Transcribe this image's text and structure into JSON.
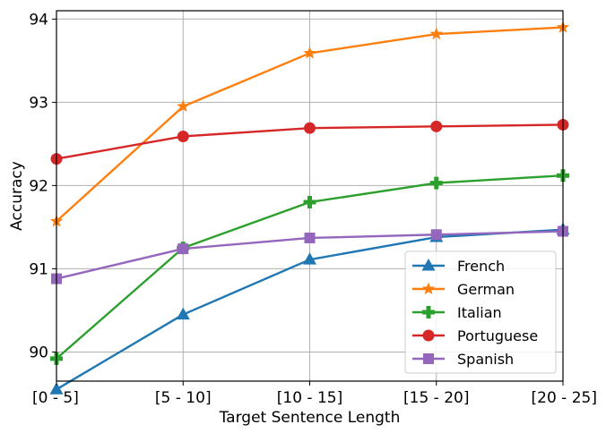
{
  "chart_data": {
    "type": "line",
    "title": "",
    "xlabel": "Target Sentence Length",
    "ylabel": "Accuracy",
    "categories": [
      "[0 - 5]",
      "[5 - 10]",
      "[10 - 15]",
      "[15 - 20]",
      "[20 - 25]"
    ],
    "ylim": [
      89.65,
      94.1
    ],
    "yticks": [
      90,
      91,
      92,
      93,
      94
    ],
    "grid": true,
    "legend_position": "lower-right",
    "series": [
      {
        "name": "French",
        "color": "#1f77b4",
        "marker": "triangle",
        "values": [
          89.55,
          90.45,
          91.11,
          91.38,
          91.47
        ]
      },
      {
        "name": "German",
        "color": "#ff7f0e",
        "marker": "star",
        "values": [
          91.57,
          92.95,
          93.59,
          93.82,
          93.9
        ]
      },
      {
        "name": "Italian",
        "color": "#2ca02c",
        "marker": "plus",
        "values": [
          89.92,
          91.25,
          91.8,
          92.03,
          92.12
        ]
      },
      {
        "name": "Portuguese",
        "color": "#d62728",
        "marker": "circle",
        "values": [
          92.32,
          92.59,
          92.69,
          92.71,
          92.73
        ]
      },
      {
        "name": "Spanish",
        "color": "#9467bd",
        "marker": "square",
        "values": [
          90.88,
          91.24,
          91.37,
          91.41,
          91.45
        ]
      }
    ]
  }
}
